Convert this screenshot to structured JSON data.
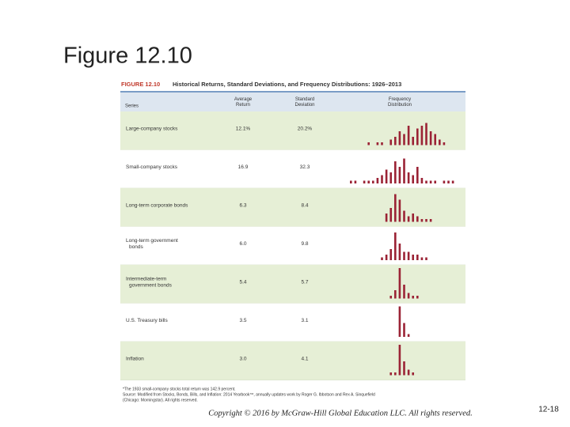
{
  "slide": {
    "title": "Figure 12.10",
    "copyright": "Copyright © 2016 by McGraw-Hill Global Education LLC. All rights reserved.",
    "page_number": "12-18"
  },
  "figure": {
    "label": "FIGURE 12.10",
    "title": "Historical Returns, Standard Deviations, and Frequency Distributions: 1926–2013",
    "headers": [
      "Series",
      "Average Return",
      "Standard Deviation",
      "Frequency Distribution"
    ],
    "rows": [
      {
        "series": [
          "Large-company stocks"
        ],
        "average_return": "12.1%",
        "standard_deviation": "20.2%",
        "frequency": [
          0,
          0,
          0,
          0,
          1,
          0,
          1,
          1,
          0,
          2,
          3,
          5,
          4,
          7,
          3,
          6,
          7,
          8,
          5,
          4,
          2,
          1,
          0,
          0
        ]
      },
      {
        "series": [
          "Small-company stocks"
        ],
        "average_return": "16.9",
        "standard_deviation": "32.3",
        "frequency": [
          1,
          1,
          0,
          1,
          1,
          1,
          2,
          3,
          5,
          4,
          8,
          6,
          9,
          4,
          3,
          6,
          2,
          1,
          1,
          1,
          0,
          1,
          1,
          1
        ]
      },
      {
        "series": [
          "Long-term corporate bonds"
        ],
        "average_return": "6.3",
        "standard_deviation": "8.4",
        "frequency": [
          0,
          0,
          0,
          0,
          0,
          0,
          0,
          0,
          3,
          5,
          10,
          8,
          4,
          2,
          3,
          2,
          1,
          1,
          1,
          0,
          0,
          0,
          0,
          0
        ]
      },
      {
        "series": [
          "Long-term government",
          "bonds"
        ],
        "average_return": "6.0",
        "standard_deviation": "9.8",
        "frequency": [
          0,
          0,
          0,
          0,
          0,
          0,
          0,
          1,
          2,
          4,
          10,
          6,
          3,
          3,
          2,
          2,
          1,
          1,
          0,
          0,
          0,
          0,
          0,
          0
        ]
      },
      {
        "series": [
          "Intermediate-term",
          "government bonds"
        ],
        "average_return": "5.4",
        "standard_deviation": "5.7",
        "frequency": [
          0,
          0,
          0,
          0,
          0,
          0,
          0,
          0,
          0,
          1,
          3,
          11,
          5,
          2,
          1,
          1,
          0,
          0,
          0,
          0,
          0,
          0,
          0,
          0
        ]
      },
      {
        "series": [
          "U.S. Treasury bills"
        ],
        "average_return": "3.5",
        "standard_deviation": "3.1",
        "frequency": [
          0,
          0,
          0,
          0,
          0,
          0,
          0,
          0,
          0,
          0,
          0,
          11,
          5,
          1,
          0,
          0,
          0,
          0,
          0,
          0,
          0,
          0,
          0,
          0
        ]
      },
      {
        "series": [
          "Inflation"
        ],
        "average_return": "3.0",
        "standard_deviation": "4.1",
        "frequency": [
          0,
          0,
          0,
          0,
          0,
          0,
          0,
          0,
          0,
          1,
          1,
          11,
          5,
          2,
          1,
          0,
          0,
          0,
          0,
          0,
          0,
          0,
          0,
          0
        ]
      }
    ],
    "footnotes": [
      "*The 1933 small-company stocks total return was 142.9 percent.",
      "Source: Modified from Stocks, Bonds, Bills, and Inflation: 2014 Yearbook™, annually updates work by Roger G. Ibbotson and Rex A. Sinquefield",
      "(Chicago: Morningstar). All rights reserved."
    ]
  }
}
